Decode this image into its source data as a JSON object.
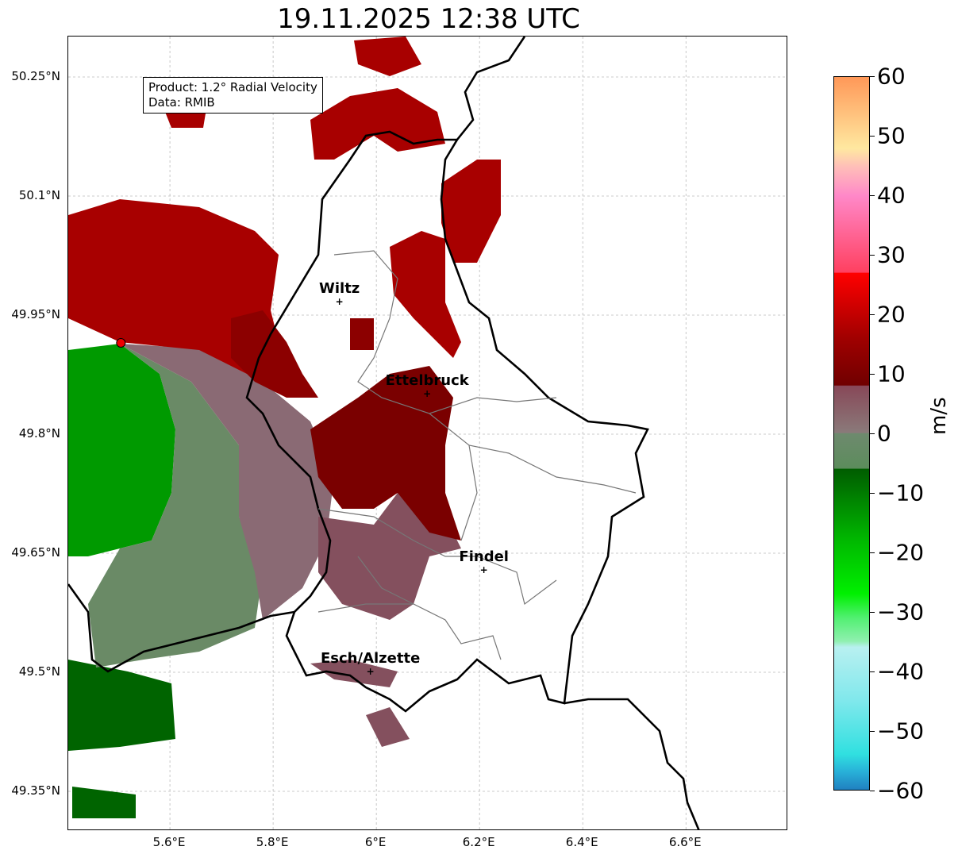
{
  "title": "19.11.2025 12:38 UTC",
  "legend": {
    "product": "Product: 1.2° Radial Velocity",
    "source": "Data: RMIB"
  },
  "axes": {
    "lon_range": [
      5.403,
      6.798
    ],
    "lat_range": [
      49.3,
      50.301
    ],
    "xticks": [
      {
        "v": 5.6,
        "label": "5.6°E"
      },
      {
        "v": 5.8,
        "label": "5.8°E"
      },
      {
        "v": 6.0,
        "label": "6°E"
      },
      {
        "v": 6.2,
        "label": "6.2°E"
      },
      {
        "v": 6.4,
        "label": "6.4°E"
      },
      {
        "v": 6.6,
        "label": "6.6°E"
      }
    ],
    "yticks": [
      {
        "v": 50.25,
        "label": "50.25°N"
      },
      {
        "v": 50.1,
        "label": "50.1°N"
      },
      {
        "v": 49.95,
        "label": "49.95°N"
      },
      {
        "v": 49.8,
        "label": "49.8°N"
      },
      {
        "v": 49.65,
        "label": "49.65°N"
      },
      {
        "v": 49.5,
        "label": "49.5°N"
      },
      {
        "v": 49.35,
        "label": "49.35°N"
      }
    ]
  },
  "cities": [
    {
      "name": "Wiltz",
      "lon": 5.93,
      "lat": 49.966
    },
    {
      "name": "Ettelbruck",
      "lon": 6.1,
      "lat": 49.85
    },
    {
      "name": "Findel",
      "lon": 6.21,
      "lat": 49.628
    },
    {
      "name": "Esch/Alzette",
      "lon": 5.99,
      "lat": 49.5
    }
  ],
  "radar": {
    "lon": 5.505,
    "lat": 49.915
  },
  "colorbar": {
    "unit": "m/s",
    "min": -60,
    "max": 60,
    "ticks": [
      {
        "v": 60,
        "label": "60"
      },
      {
        "v": 50,
        "label": "50"
      },
      {
        "v": 40,
        "label": "40"
      },
      {
        "v": 30,
        "label": "30"
      },
      {
        "v": 20,
        "label": "20"
      },
      {
        "v": 10,
        "label": "10"
      },
      {
        "v": 0,
        "label": "0"
      },
      {
        "v": -10,
        "label": "−10"
      },
      {
        "v": -20,
        "label": "−20"
      },
      {
        "v": -30,
        "label": "−30"
      },
      {
        "v": -40,
        "label": "−40"
      },
      {
        "v": -50,
        "label": "−50"
      },
      {
        "v": -60,
        "label": "−60"
      }
    ],
    "stops": [
      {
        "v": -60,
        "c": "#2080c0"
      },
      {
        "v": -57,
        "c": "#28b0d8"
      },
      {
        "v": -54,
        "c": "#30e0e0"
      },
      {
        "v": -45,
        "c": "#80e8ec"
      },
      {
        "v": -36,
        "c": "#b8f0f0"
      },
      {
        "v": -35,
        "c": "#90f0b0"
      },
      {
        "v": -31,
        "c": "#50f070"
      },
      {
        "v": -27,
        "c": "#00f000"
      },
      {
        "v": -18,
        "c": "#00b800"
      },
      {
        "v": -6,
        "c": "#005c00"
      },
      {
        "v": -5.9,
        "c": "#5c8c5c"
      },
      {
        "v": 0,
        "c": "#6e8a6e"
      },
      {
        "v": 0.1,
        "c": "#8a7a7a"
      },
      {
        "v": 8,
        "c": "#884858"
      },
      {
        "v": 8.1,
        "c": "#700000"
      },
      {
        "v": 16,
        "c": "#a00000"
      },
      {
        "v": 27,
        "c": "#ff0000"
      },
      {
        "v": 27.1,
        "c": "#ff4060"
      },
      {
        "v": 40,
        "c": "#ff88c8"
      },
      {
        "v": 45,
        "c": "#ffc0b8"
      },
      {
        "v": 48,
        "c": "#ffe8a0"
      },
      {
        "v": 60,
        "c": "#ff9858"
      }
    ]
  }
}
